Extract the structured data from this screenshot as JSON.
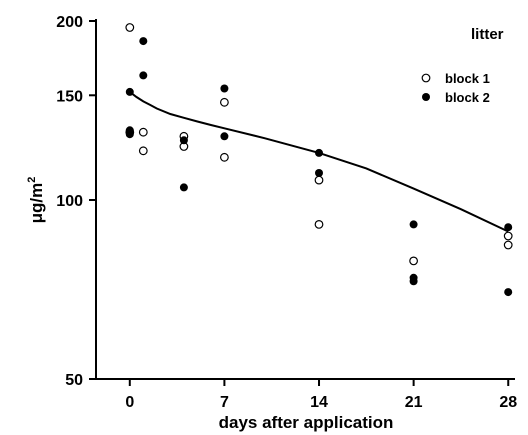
{
  "chart_data": {
    "type": "scatter",
    "panel_label": "litter",
    "xlabel": "days after application",
    "ylabel": "μg/m²",
    "ylabel_main": "μg/m",
    "ylabel_sup": "2",
    "x_ticks": [
      0,
      7,
      14,
      21,
      28
    ],
    "y_ticks": [
      50,
      100,
      150,
      200
    ],
    "xlim": [
      -2.5,
      28.5
    ],
    "ylim": [
      50,
      200
    ],
    "y_scale": "log",
    "grid": false,
    "legend_position": "top-right",
    "series": [
      {
        "name": "block 1",
        "marker": "open-circle",
        "points": [
          [
            0,
            195
          ],
          [
            0,
            130
          ],
          [
            1,
            130
          ],
          [
            1,
            121
          ],
          [
            4,
            128
          ],
          [
            4,
            123
          ],
          [
            7,
            146
          ],
          [
            7,
            118
          ],
          [
            14,
            108
          ],
          [
            14,
            91
          ],
          [
            21,
            79
          ],
          [
            28,
            87
          ],
          [
            28,
            84
          ]
        ]
      },
      {
        "name": "block 2",
        "marker": "filled-circle",
        "points": [
          [
            0,
            152
          ],
          [
            0,
            131
          ],
          [
            0,
            129
          ],
          [
            1,
            185
          ],
          [
            1,
            162
          ],
          [
            4,
            126
          ],
          [
            4,
            105
          ],
          [
            7,
            154
          ],
          [
            7,
            128
          ],
          [
            14,
            120
          ],
          [
            14,
            111
          ],
          [
            21,
            91
          ],
          [
            21,
            74
          ],
          [
            21,
            73
          ],
          [
            28,
            90
          ],
          [
            28,
            70
          ]
        ]
      }
    ],
    "fit_curve": [
      [
        0,
        152
      ],
      [
        0.5,
        149
      ],
      [
        1,
        146.5
      ],
      [
        1.5,
        144.5
      ],
      [
        2,
        142.5
      ],
      [
        3,
        139.5
      ],
      [
        4,
        137.5
      ],
      [
        5,
        135.5
      ],
      [
        6,
        133.7
      ],
      [
        7,
        132
      ],
      [
        10,
        127
      ],
      [
        14,
        120
      ],
      [
        17.5,
        113
      ],
      [
        21,
        104.5
      ],
      [
        24.5,
        96.5
      ],
      [
        28,
        88.5
      ]
    ]
  }
}
